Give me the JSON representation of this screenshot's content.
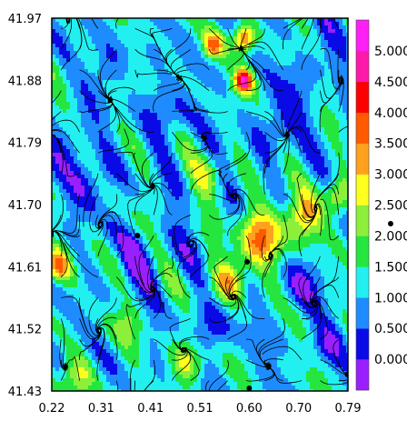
{
  "chart_data": {
    "type": "heatmap",
    "title": "",
    "xlabel": "",
    "ylabel": "",
    "x_ticks": [
      "0.22",
      "0.31",
      "0.41",
      "0.51",
      "0.60",
      "0.70",
      "0.79"
    ],
    "y_ticks": [
      "41.97",
      "41.88",
      "41.79",
      "41.70",
      "41.61",
      "41.52",
      "41.43"
    ],
    "xlim": [
      0.22,
      0.79
    ],
    "ylim": [
      41.43,
      41.97
    ],
    "overlay": "streamlines",
    "colorbar": {
      "labels": [
        "0.000",
        "0.500",
        "1.000",
        "1.500",
        "2.000",
        "2.500",
        "3.000",
        "3.500",
        "4.000",
        "4.500",
        "5.000"
      ],
      "colors": [
        "#9a1fff",
        "#0a0ae6",
        "#1e8cff",
        "#22f0f0",
        "#25e63f",
        "#8cf03a",
        "#ffff1e",
        "#ffa01e",
        "#ff5a00",
        "#ff0000",
        "#ff19aa",
        "#ff1ef5"
      ]
    },
    "markers": [
      {
        "x": 0.385,
        "y": 41.655
      },
      {
        "x": 0.596,
        "y": 41.617
      },
      {
        "x": 0.6,
        "y": 41.434
      }
    ],
    "hotspots": [
      {
        "x": 0.29,
        "y": 41.73,
        "value": 0.2,
        "spread": 0.04
      },
      {
        "x": 0.26,
        "y": 41.8,
        "value": 0.3,
        "spread": 0.035
      },
      {
        "x": 0.4,
        "y": 41.62,
        "value": 0.3,
        "spread": 0.045
      },
      {
        "x": 0.45,
        "y": 41.84,
        "value": 0.3,
        "spread": 0.04
      },
      {
        "x": 0.33,
        "y": 41.9,
        "value": 0.4,
        "spread": 0.03
      },
      {
        "x": 0.66,
        "y": 41.82,
        "value": 0.2,
        "spread": 0.04
      },
      {
        "x": 0.72,
        "y": 41.9,
        "value": 0.3,
        "spread": 0.035
      },
      {
        "x": 0.7,
        "y": 41.58,
        "value": 0.3,
        "spread": 0.035
      },
      {
        "x": 0.53,
        "y": 41.52,
        "value": 0.3,
        "spread": 0.035
      },
      {
        "x": 0.75,
        "y": 41.5,
        "value": 0.4,
        "spread": 0.03
      },
      {
        "x": 0.62,
        "y": 41.65,
        "value": 3.6,
        "spread": 0.04
      },
      {
        "x": 0.7,
        "y": 41.68,
        "value": 3.2,
        "spread": 0.035
      },
      {
        "x": 0.56,
        "y": 41.59,
        "value": 3.0,
        "spread": 0.03
      },
      {
        "x": 0.77,
        "y": 41.71,
        "value": 2.8,
        "spread": 0.025
      },
      {
        "x": 0.59,
        "y": 41.88,
        "value": 4.8,
        "spread": 0.018
      },
      {
        "x": 0.59,
        "y": 41.94,
        "value": 4.0,
        "spread": 0.02
      },
      {
        "x": 0.53,
        "y": 41.93,
        "value": 3.2,
        "spread": 0.02
      },
      {
        "x": 0.23,
        "y": 41.61,
        "value": 3.4,
        "spread": 0.025
      },
      {
        "x": 0.27,
        "y": 41.45,
        "value": 2.5,
        "spread": 0.03
      },
      {
        "x": 0.48,
        "y": 41.47,
        "value": 2.6,
        "spread": 0.03
      },
      {
        "x": 0.52,
        "y": 41.74,
        "value": 2.2,
        "spread": 0.03
      },
      {
        "x": 0.37,
        "y": 41.53,
        "value": 2.0,
        "spread": 0.03
      }
    ],
    "background_value": 1.1
  }
}
